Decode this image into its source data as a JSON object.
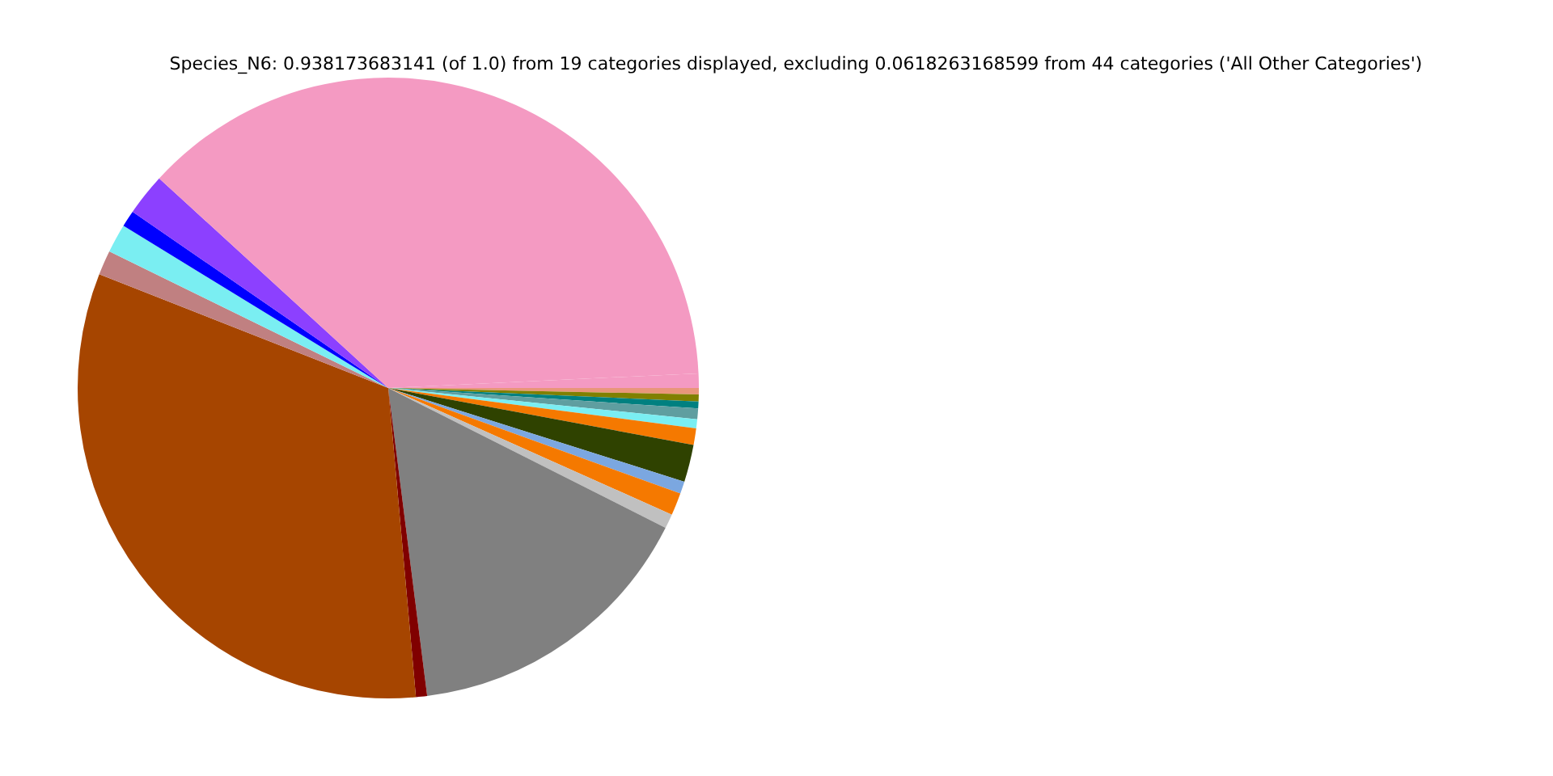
{
  "chart_data": {
    "type": "pie",
    "title": "Species_N6: 0.938173683141 (of 1.0) from 19 categories displayed, excluding 0.0618263168599 from 44 categories ('All Other Categories')",
    "categories": [
      null,
      null,
      null,
      null,
      null,
      null,
      null,
      null,
      null,
      null,
      null,
      null,
      null,
      null,
      null,
      null,
      null,
      null,
      null
    ],
    "values": [
      0.33,
      0.36,
      0.36,
      0.56,
      0.47,
      0.86,
      1.94,
      0.64,
      1.17,
      0.75,
      15.56,
      0.58,
      32.39,
      1.28,
      1.5,
      0.86,
      2.19,
      37.45,
      0.75
    ],
    "colors": [
      "#e9967a",
      "#808000",
      "#008080",
      "#5f9ea0",
      "#7aeef2",
      "#f57900",
      "#2f4200",
      "#7ba7e0",
      "#f57900",
      "#c0c0c0",
      "#808080",
      "#800000",
      "#a64500",
      "#c08081",
      "#7aeef2",
      "#0000ff",
      "#8c40ff",
      "#f49ac2",
      "#f49ac2"
    ],
    "legend": false
  }
}
